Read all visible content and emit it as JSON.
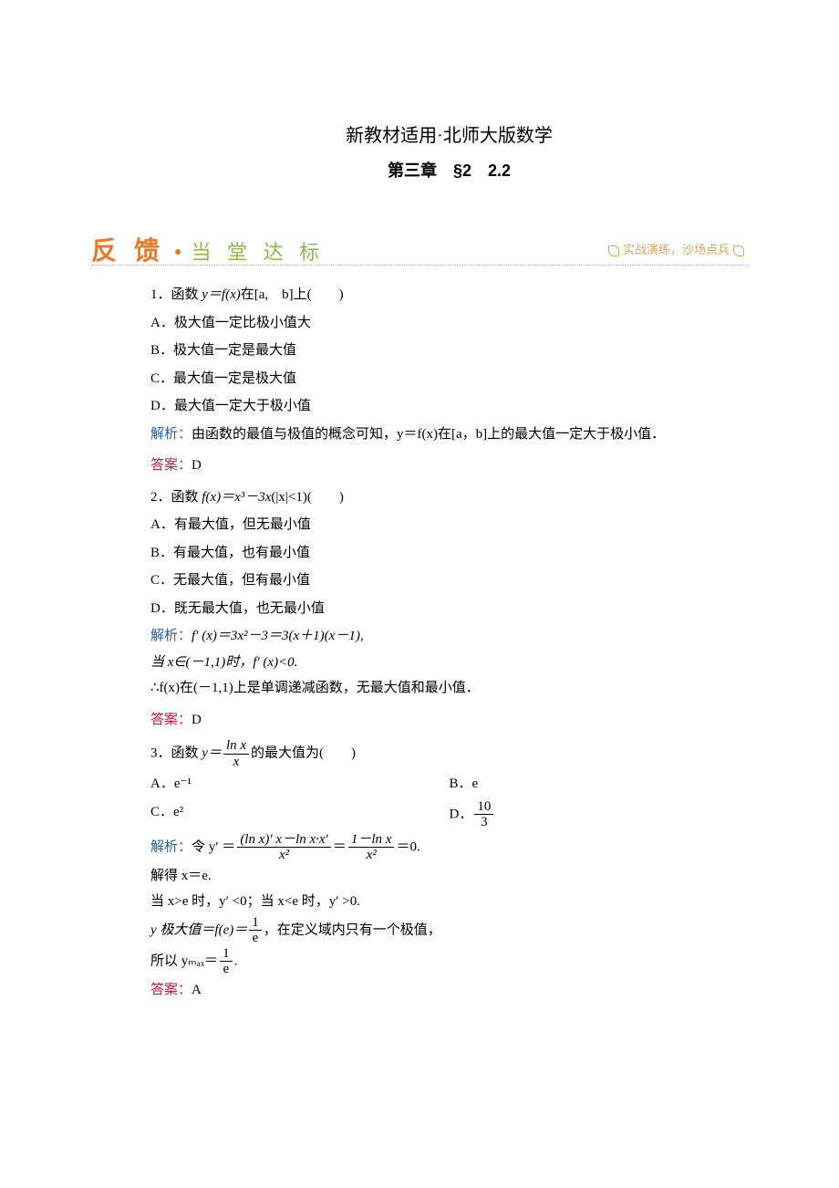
{
  "header": {
    "line1": "新教材适用·北师大版数学",
    "line2": "第三章　§2　2.2"
  },
  "banner": {
    "left1": "反 馈",
    "left2": "当 堂 达 标",
    "right": "实战演练，沙场点兵"
  },
  "q1": {
    "stem_pre": "1．函数 ",
    "stem_expr": "y＝f(x)",
    "stem_post": "在[a,　b]上(　　)",
    "optA": "A．极大值一定比极小值大",
    "optB": "B．极大值一定是最大值",
    "optC": "C．最大值一定是极大值",
    "optD": "D．最大值一定大于极小值",
    "jiexi_label": "解析：",
    "jiexi_text": "由函数的最值与极值的概念可知，y＝f(x)在[a，b]上的最大值一定大于极小值．",
    "daan_label": "答案：",
    "daan_text": "D"
  },
  "q2": {
    "stem_pre": "2．函数 ",
    "stem_expr": "f(x)＝x³－3x",
    "stem_post": "(|x|<1)(　　)",
    "optA": "A．有最大值，但无最小值",
    "optB": "B．有最大值，也有最小值",
    "optC": "C．无最大值，但有最小值",
    "optD": "D．既无最大值，也无最小值",
    "jiexi_label": "解析：",
    "jiexi_l1": "f′ (x)＝3x²－3＝3(x＋1)(x－1),",
    "jiexi_l2": "当 x∈(－1,1)时，f′ (x)<0.",
    "jiexi_l3": "∴f(x)在(－1,1)上是单调递减函数，无最大值和最小值．",
    "daan_label": "答案：",
    "daan_text": "D"
  },
  "q3": {
    "stem_pre": "3．函数 ",
    "stem_y": "y＝",
    "frac1_num": "ln x",
    "frac1_den": "x",
    "stem_post": "的最大值为(　　)",
    "optA": "A．e⁻¹",
    "optB": "B．e",
    "optC": "C．e²",
    "optD_pre": "D．",
    "optD_num": "10",
    "optD_den": "3",
    "jiexi_label": "解析：",
    "jiexi_l1_pre": "令 y′ ＝",
    "jiexi_f2_num": "(ln x)′ x－ln x·x′",
    "jiexi_f2_den": "x²",
    "jiexi_eq": "＝",
    "jiexi_f3_num": "1－ln x",
    "jiexi_f3_den": "x²",
    "jiexi_l1_post": "＝0.",
    "jiexi_l2": "解得 x＝e.",
    "jiexi_l3": "当 x>e 时，y′ <0；当 x<e 时，y′ >0.",
    "jiexi_l4_pre": "y 极大值＝f(e)＝",
    "jiexi_l4_num": "1",
    "jiexi_l4_den": "e",
    "jiexi_l4_post": "，在定义域内只有一个极值，",
    "jiexi_l5_pre": "所以 yₘₐₓ＝",
    "jiexi_l5_num": "1",
    "jiexi_l5_den": "e",
    "jiexi_l5_post": ".",
    "daan_label": "答案：",
    "daan_text": "A"
  },
  "colors": {
    "jiexi": "#1f5fbf",
    "daan": "#c41e3a",
    "banner_orange": "#e77a2b",
    "banner_green": "#8fb84a",
    "banner_tan": "#d9a860"
  }
}
